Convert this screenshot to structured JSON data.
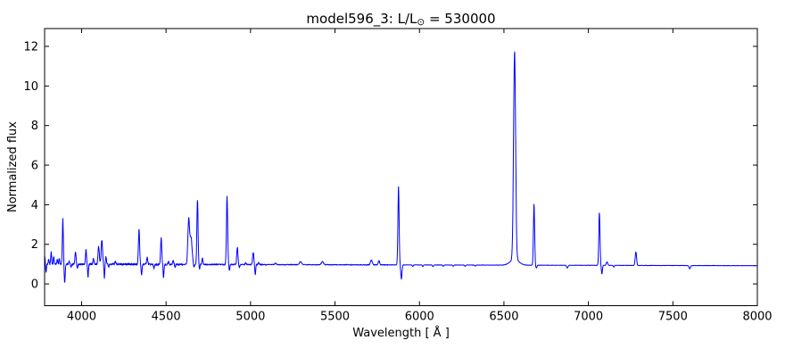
{
  "title": {
    "prefix": "model596_3: L/L",
    "sun_symbol": "⊙",
    "suffix": " = 530000"
  },
  "chart_data": {
    "type": "line",
    "title": "model596_3: L/L⊙ = 530000",
    "xlabel": "Wavelength [ Å ]",
    "ylabel": "Normalized flux",
    "xlim": [
      3781,
      8000
    ],
    "ylim": [
      -1.1,
      12.9
    ],
    "xticks": [
      4000,
      4500,
      5000,
      5500,
      6000,
      6500,
      7000,
      7500,
      8000
    ],
    "yticks": [
      0,
      2,
      4,
      6,
      8,
      10,
      12
    ],
    "grid": false,
    "legend": "none",
    "line_color": "#0000ff",
    "frame_color": "#000000",
    "background": "#ffffff",
    "continuum": {
      "start": 1.0,
      "end": 0.92
    },
    "emission_lines": [
      {
        "wavelength": 3782,
        "peak_flux": 1.35,
        "width": 1.5
      },
      {
        "wavelength": 3805,
        "peak_flux": 1.25,
        "width": 2.5
      },
      {
        "wavelength": 3820,
        "peak_flux": 1.6,
        "width": 2.5
      },
      {
        "wavelength": 3835,
        "peak_flux": 1.35,
        "width": 2.5
      },
      {
        "wavelength": 3856,
        "peak_flux": 1.2,
        "width": 2.5
      },
      {
        "wavelength": 3868,
        "peak_flux": 1.3,
        "width": 2.5
      },
      {
        "wavelength": 3889,
        "peak_flux": 3.3,
        "width": 3.0
      },
      {
        "wavelength": 3927,
        "peak_flux": 1.15,
        "width": 3.0
      },
      {
        "wavelength": 3964,
        "peak_flux": 1.65,
        "width": 3.0
      },
      {
        "wavelength": 4026,
        "peak_flux": 1.7,
        "width": 3.0
      },
      {
        "wavelength": 4070,
        "peak_flux": 1.25,
        "width": 3.0
      },
      {
        "wavelength": 4101,
        "peak_flux": 1.9,
        "width": 4.0
      },
      {
        "wavelength": 4120,
        "peak_flux": 2.2,
        "width": 4.0
      },
      {
        "wavelength": 4144,
        "peak_flux": 1.4,
        "width": 3.0
      },
      {
        "wavelength": 4200,
        "peak_flux": 1.12,
        "width": 3.0
      },
      {
        "wavelength": 4340,
        "peak_flux": 2.75,
        "width": 3.5
      },
      {
        "wavelength": 4388,
        "peak_flux": 1.38,
        "width": 3.0
      },
      {
        "wavelength": 4471,
        "peak_flux": 2.3,
        "width": 3.5
      },
      {
        "wavelength": 4515,
        "peak_flux": 1.12,
        "width": 3.0
      },
      {
        "wavelength": 4542,
        "peak_flux": 1.18,
        "width": 3.0
      },
      {
        "wavelength": 4634,
        "peak_flux": 3.25,
        "width": 5.0
      },
      {
        "wavelength": 4648,
        "peak_flux": 2.35,
        "width": 6.0
      },
      {
        "wavelength": 4686,
        "peak_flux": 4.25,
        "width": 3.5
      },
      {
        "wavelength": 4715,
        "peak_flux": 1.3,
        "width": 3.0
      },
      {
        "wavelength": 4861,
        "peak_flux": 4.4,
        "width": 3.5
      },
      {
        "wavelength": 4922,
        "peak_flux": 1.85,
        "width": 3.5
      },
      {
        "wavelength": 4971,
        "peak_flux": 1.06,
        "width": 3.0
      },
      {
        "wavelength": 5016,
        "peak_flux": 1.6,
        "width": 3.5
      },
      {
        "wavelength": 5048,
        "peak_flux": 1.08,
        "width": 3.0
      },
      {
        "wavelength": 5148,
        "peak_flux": 1.05,
        "width": 4.0
      },
      {
        "wavelength": 5296,
        "peak_flux": 1.14,
        "width": 6.0
      },
      {
        "wavelength": 5426,
        "peak_flux": 1.12,
        "width": 6.0
      },
      {
        "wavelength": 5715,
        "peak_flux": 1.22,
        "width": 5.0
      },
      {
        "wavelength": 5760,
        "peak_flux": 1.18,
        "width": 4.0
      },
      {
        "wavelength": 5876,
        "peak_flux": 4.95,
        "width": 3.5
      },
      {
        "wavelength": 6563,
        "peak_flux": 11.45,
        "width": 6.0
      },
      {
        "wavelength": 6563,
        "peak_flux": 1.25,
        "width": 25.0
      },
      {
        "wavelength": 6678,
        "peak_flux": 4.05,
        "width": 3.5
      },
      {
        "wavelength": 7065,
        "peak_flux": 3.6,
        "width": 3.5
      },
      {
        "wavelength": 7110,
        "peak_flux": 1.12,
        "width": 4.0
      },
      {
        "wavelength": 7281,
        "peak_flux": 1.62,
        "width": 4.0
      }
    ],
    "absorption_lines": [
      {
        "wavelength": 3790,
        "min_flux": 0.6,
        "width": 2.0
      },
      {
        "wavelength": 3900,
        "min_flux": 0.05,
        "width": 3.0
      },
      {
        "wavelength": 3938,
        "min_flux": 0.8,
        "width": 2.5
      },
      {
        "wavelength": 3975,
        "min_flux": 0.78,
        "width": 2.5
      },
      {
        "wavelength": 4038,
        "min_flux": 0.35,
        "width": 2.5
      },
      {
        "wavelength": 4135,
        "min_flux": 0.3,
        "width": 2.5
      },
      {
        "wavelength": 4160,
        "min_flux": 0.85,
        "width": 2.5
      },
      {
        "wavelength": 4355,
        "min_flux": 0.45,
        "width": 2.5
      },
      {
        "wavelength": 4428,
        "min_flux": 0.8,
        "width": 3.0
      },
      {
        "wavelength": 4485,
        "min_flux": 0.35,
        "width": 2.5
      },
      {
        "wavelength": 4554,
        "min_flux": 0.85,
        "width": 2.5
      },
      {
        "wavelength": 4665,
        "min_flux": 0.85,
        "width": 3.0
      },
      {
        "wavelength": 4698,
        "min_flux": 0.75,
        "width": 2.5
      },
      {
        "wavelength": 4875,
        "min_flux": 0.68,
        "width": 2.5
      },
      {
        "wavelength": 4934,
        "min_flux": 0.8,
        "width": 2.5
      },
      {
        "wavelength": 5028,
        "min_flux": 0.45,
        "width": 2.5
      },
      {
        "wavelength": 5893,
        "min_flux": 0.25,
        "width": 3.5
      },
      {
        "wavelength": 5960,
        "min_flux": 0.88,
        "width": 3.0
      },
      {
        "wavelength": 6020,
        "min_flux": 0.88,
        "width": 3.0
      },
      {
        "wavelength": 6080,
        "min_flux": 0.88,
        "width": 3.0
      },
      {
        "wavelength": 6140,
        "min_flux": 0.89,
        "width": 3.0
      },
      {
        "wavelength": 6200,
        "min_flux": 0.89,
        "width": 3.0
      },
      {
        "wavelength": 6270,
        "min_flux": 0.89,
        "width": 3.0
      },
      {
        "wavelength": 6330,
        "min_flux": 0.9,
        "width": 3.0
      },
      {
        "wavelength": 6692,
        "min_flux": 0.8,
        "width": 3.0
      },
      {
        "wavelength": 6875,
        "min_flux": 0.8,
        "width": 4.0
      },
      {
        "wavelength": 7080,
        "min_flux": 0.5,
        "width": 3.0
      },
      {
        "wavelength": 7150,
        "min_flux": 0.85,
        "width": 3.0
      },
      {
        "wavelength": 7600,
        "min_flux": 0.76,
        "width": 4.0
      }
    ],
    "noise_regions": [
      {
        "from": 3781,
        "to": 4600,
        "amplitude": 0.05
      },
      {
        "from": 4600,
        "to": 5100,
        "amplitude": 0.03
      },
      {
        "from": 5100,
        "to": 5900,
        "amplitude": 0.018
      },
      {
        "from": 5900,
        "to": 8000,
        "amplitude": 0.008
      }
    ]
  }
}
